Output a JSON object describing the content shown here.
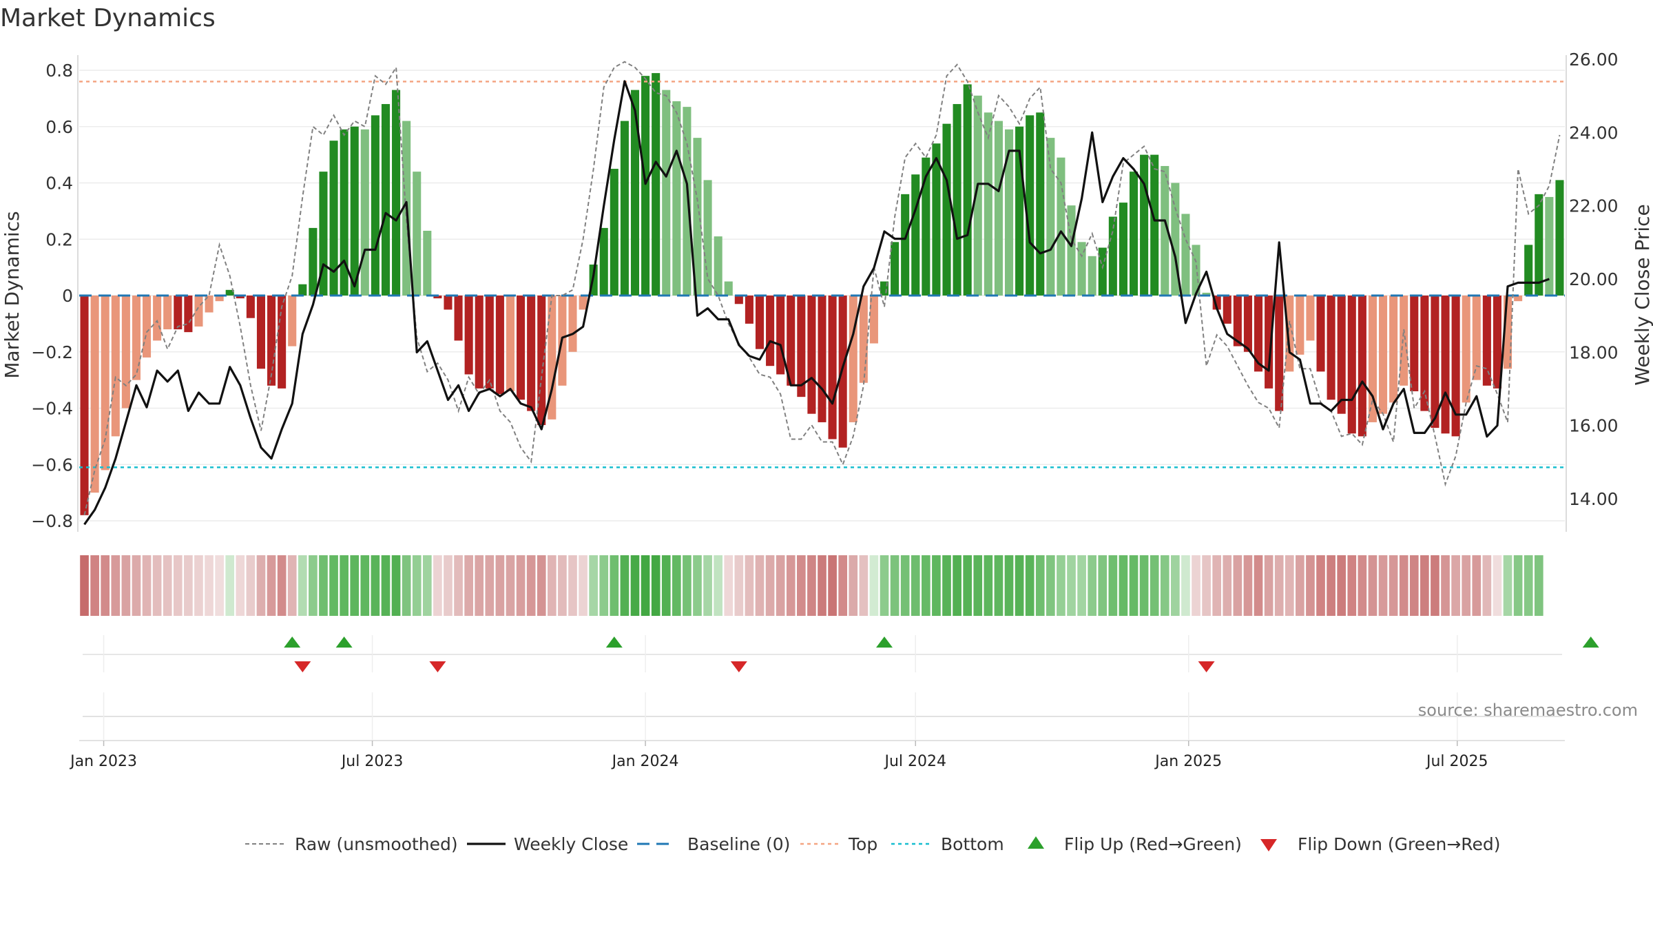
{
  "title": "Market Dynamics",
  "source": "source: sharemaestro.com",
  "colors": {
    "green_strong": "#228b22",
    "green_light": "#7fbf7f",
    "red_strong": "#b22222",
    "red_light": "#e9967a",
    "baseline": "#1f77b4",
    "top": "#f4a582",
    "bottom": "#17becf",
    "raw": "#808080",
    "close": "#111111",
    "flip_up": "#2ca02c",
    "flip_down": "#d62728"
  },
  "chart_data": {
    "type": "bar",
    "title": "Market Dynamics",
    "ylabel_left": "Market Dynamics",
    "ylabel_right": "Weekly Close Price",
    "ylim_left": [
      -0.8,
      0.8
    ],
    "ylim_right": [
      13.0,
      26.0
    ],
    "yticks_left": [
      "0.8",
      "0.6",
      "0.4",
      "0.2",
      "0",
      "−0.2",
      "−0.4",
      "−0.6",
      "−0.8"
    ],
    "yticks_right": [
      "26.00",
      "24.00",
      "22.00",
      "20.00",
      "18.00",
      "16.00",
      "14.00"
    ],
    "xticks": [
      "Jan 2023",
      "Jul 2023",
      "Jan 2024",
      "Jul 2024",
      "Jan 2025",
      "Jul 2025"
    ],
    "reference_lines": {
      "baseline": 0,
      "top": 0.76,
      "bottom": -0.61
    },
    "grid": true,
    "legend_position": "bottom",
    "start_date": "2022-12-19",
    "week_step_days": 7,
    "momentum": [
      -0.78,
      -0.7,
      -0.62,
      -0.5,
      -0.4,
      -0.3,
      -0.22,
      -0.16,
      -0.12,
      -0.12,
      -0.13,
      -0.11,
      -0.06,
      -0.02,
      0.02,
      -0.01,
      -0.08,
      -0.26,
      -0.32,
      -0.33,
      -0.18,
      0.04,
      0.24,
      0.44,
      0.55,
      0.59,
      0.6,
      0.59,
      0.64,
      0.68,
      0.73,
      0.62,
      0.44,
      0.23,
      -0.01,
      -0.05,
      -0.16,
      -0.28,
      -0.33,
      -0.33,
      -0.35,
      -0.34,
      -0.37,
      -0.41,
      -0.46,
      -0.44,
      -0.32,
      -0.2,
      -0.05,
      0.11,
      0.24,
      0.45,
      0.62,
      0.73,
      0.78,
      0.79,
      0.73,
      0.69,
      0.67,
      0.56,
      0.41,
      0.21,
      0.05,
      -0.03,
      -0.1,
      -0.19,
      -0.25,
      -0.28,
      -0.32,
      -0.36,
      -0.42,
      -0.45,
      -0.51,
      -0.54,
      -0.45,
      -0.31,
      -0.17,
      0.05,
      0.19,
      0.36,
      0.43,
      0.49,
      0.54,
      0.61,
      0.68,
      0.75,
      0.71,
      0.65,
      0.62,
      0.59,
      0.6,
      0.64,
      0.65,
      0.56,
      0.49,
      0.32,
      0.19,
      0.14,
      0.17,
      0.28,
      0.33,
      0.44,
      0.5,
      0.5,
      0.46,
      0.4,
      0.29,
      0.18,
      0.01,
      -0.05,
      -0.1,
      -0.18,
      -0.2,
      -0.27,
      -0.33,
      -0.41,
      -0.27,
      -0.21,
      -0.16,
      -0.27,
      -0.37,
      -0.42,
      -0.49,
      -0.5,
      -0.45,
      -0.42,
      -0.38,
      -0.32,
      -0.34,
      -0.41,
      -0.47,
      -0.49,
      -0.5,
      -0.38,
      -0.3,
      -0.32,
      -0.33,
      -0.26,
      -0.02,
      0.18,
      0.36,
      0.35,
      0.41
    ],
    "raw": [
      -0.78,
      -0.62,
      -0.51,
      -0.29,
      -0.32,
      -0.28,
      -0.13,
      -0.09,
      -0.19,
      -0.11,
      -0.1,
      -0.04,
      0.0,
      0.18,
      0.07,
      -0.11,
      -0.32,
      -0.48,
      -0.28,
      -0.04,
      0.07,
      0.35,
      0.6,
      0.57,
      0.64,
      0.57,
      0.62,
      0.6,
      0.78,
      0.75,
      0.81,
      0.27,
      -0.15,
      -0.27,
      -0.24,
      -0.3,
      -0.41,
      -0.29,
      -0.35,
      -0.3,
      -0.41,
      -0.45,
      -0.54,
      -0.59,
      -0.29,
      0.0,
      0.0,
      0.02,
      0.2,
      0.45,
      0.74,
      0.81,
      0.83,
      0.81,
      0.77,
      0.72,
      0.71,
      0.65,
      0.54,
      0.34,
      0.06,
      0.0,
      -0.1,
      -0.17,
      -0.22,
      -0.28,
      -0.29,
      -0.35,
      -0.51,
      -0.51,
      -0.46,
      -0.52,
      -0.52,
      -0.6,
      -0.5,
      -0.32,
      0.1,
      -0.04,
      0.28,
      0.49,
      0.54,
      0.49,
      0.57,
      0.78,
      0.82,
      0.76,
      0.65,
      0.56,
      0.71,
      0.67,
      0.61,
      0.7,
      0.74,
      0.45,
      0.4,
      0.2,
      0.14,
      0.22,
      0.1,
      0.23,
      0.47,
      0.5,
      0.53,
      0.45,
      0.44,
      0.31,
      0.2,
      0.12,
      -0.25,
      -0.14,
      -0.18,
      -0.25,
      -0.32,
      -0.38,
      -0.4,
      -0.47,
      -0.09,
      -0.26,
      -0.26,
      -0.38,
      -0.41,
      -0.5,
      -0.49,
      -0.53,
      -0.37,
      -0.42,
      -0.52,
      -0.12,
      -0.4,
      -0.34,
      -0.5,
      -0.67,
      -0.57,
      -0.38,
      -0.25,
      -0.26,
      -0.35,
      -0.45,
      0.45,
      0.29,
      0.32,
      0.39,
      0.57
    ],
    "close": [
      13.3,
      13.7,
      14.3,
      15.1,
      16.1,
      17.1,
      16.5,
      17.5,
      17.2,
      17.5,
      16.4,
      16.9,
      16.6,
      16.6,
      17.6,
      17.1,
      16.2,
      15.4,
      15.1,
      15.9,
      16.6,
      18.5,
      19.3,
      20.4,
      20.2,
      20.5,
      19.8,
      20.8,
      20.8,
      21.8,
      21.6,
      22.1,
      18.0,
      18.3,
      17.5,
      16.7,
      17.1,
      16.4,
      16.9,
      17.0,
      16.8,
      17.0,
      16.6,
      16.5,
      15.9,
      17.0,
      18.4,
      18.5,
      18.7,
      20.1,
      22.0,
      23.8,
      25.4,
      24.6,
      22.6,
      23.2,
      22.8,
      23.5,
      22.6,
      19.0,
      19.2,
      18.9,
      18.9,
      18.2,
      17.9,
      17.8,
      18.3,
      18.2,
      17.1,
      17.1,
      17.3,
      17.0,
      16.6,
      17.6,
      18.5,
      19.8,
      20.3,
      21.3,
      21.1,
      21.1,
      21.9,
      22.8,
      23.3,
      22.7,
      21.1,
      21.2,
      22.6,
      22.6,
      22.4,
      23.5,
      23.5,
      21.0,
      20.7,
      20.8,
      21.3,
      20.9,
      22.2,
      24.0,
      22.1,
      22.8,
      23.3,
      23.0,
      22.6,
      21.6,
      21.6,
      20.6,
      18.8,
      19.6,
      20.2,
      19.2,
      18.5,
      18.3,
      18.1,
      17.7,
      17.5,
      21.0,
      18.0,
      17.8,
      16.6,
      16.6,
      16.4,
      16.7,
      16.7,
      17.2,
      16.8,
      15.9,
      16.6,
      17.0,
      15.8,
      15.8,
      16.2,
      16.9,
      16.3,
      16.3,
      16.8,
      15.7,
      16.0,
      19.8,
      19.9,
      19.9,
      19.9,
      20.0
    ]
  },
  "regime_strip": [
    "#c66b6b",
    "#d08383",
    "#d28b8b",
    "#d79a9a",
    "#d9a2a2",
    "#dcaaaa",
    "#e0b4b4",
    "#e3bdbd",
    "#e5c2c2",
    "#e7c7c7",
    "#e8cbcb",
    "#ebd1d1",
    "#eed7d7",
    "#f0dddd",
    "#cfe9cf",
    "#eed7d7",
    "#e8cbcb",
    "#ddaeae",
    "#d79a9a",
    "#d28b8b",
    "#e0b4b4",
    "#b2dcb2",
    "#8ccb8c",
    "#6fbe6f",
    "#63b963",
    "#5fb75f",
    "#5eb65e",
    "#5fb75f",
    "#5ab45a",
    "#56b256",
    "#52b052",
    "#7fc47f",
    "#93ce93",
    "#9fd39f",
    "#ecd3d3",
    "#e8cbcb",
    "#e2bbbb",
    "#dcaaaa",
    "#daa5a5",
    "#daa5a5",
    "#d9a2a2",
    "#d9a4a4",
    "#d89e9e",
    "#d69797",
    "#d49393",
    "#e0b4b4",
    "#e2bbbb",
    "#e6c5c5",
    "#ecd3d3",
    "#a6d6a6",
    "#8ccb8c",
    "#6fbe6f",
    "#53b053",
    "#47aa47",
    "#43a843",
    "#43a843",
    "#52b052",
    "#63b963",
    "#76c176",
    "#8ccb8c",
    "#a6d6a6",
    "#c1e3c1",
    "#eed7d7",
    "#e8cbcb",
    "#e3bdbd",
    "#dfb2b2",
    "#dcaaaa",
    "#d9a2a2",
    "#d69797",
    "#d28b8b",
    "#cf8585",
    "#cb7b7b",
    "#c97575",
    "#d28b8b",
    "#dbaaaa",
    "#e4c0c0",
    "#d2ebd2",
    "#8ccb8c",
    "#7cc37c",
    "#74c074",
    "#6ebd6e",
    "#66ba66",
    "#5fb75f",
    "#58b358",
    "#52b052",
    "#56b256",
    "#5ab45a",
    "#5db65d",
    "#5eb65e",
    "#5ab45a",
    "#56b256",
    "#5ab45a",
    "#6fbe6f",
    "#80c580",
    "#95cf95",
    "#a0d4a0",
    "#a2d5a2",
    "#8ccb8c",
    "#80c580",
    "#6fbe6f",
    "#66ba66",
    "#66ba66",
    "#6bbc6b",
    "#74c074",
    "#86c886",
    "#9fd39f",
    "#cfe9cf",
    "#ecd3d3",
    "#e6c5c5",
    "#e0b4b4",
    "#ddaeae",
    "#d9a2a2",
    "#d69797",
    "#d28b8b",
    "#d9a2a2",
    "#ddaeae",
    "#e0b4b4",
    "#d9a2a2",
    "#d49393",
    "#d08383",
    "#cd7f7f",
    "#cc7c7c",
    "#d08383",
    "#d28b8b",
    "#d49393",
    "#d79a9a",
    "#d69797",
    "#d28b8b",
    "#cf8585",
    "#cd7f7f",
    "#cc7c7c",
    "#d59595",
    "#dba7a7",
    "#d9a2a2",
    "#d79a9a",
    "#e1b8b8",
    "#f0dddd",
    "#a6d6a6",
    "#86c886",
    "#86c886",
    "#7fc47f"
  ],
  "flips": {
    "up": [
      "2023-05-08",
      "2023-06-12",
      "2023-12-11",
      "2024-06-10",
      "2025-09-29"
    ],
    "down": [
      "2023-05-15",
      "2023-08-14",
      "2024-03-04",
      "2025-01-13"
    ]
  },
  "legend": {
    "raw": "Raw (unsmoothed)",
    "close": "Weekly Close",
    "baseline": "Baseline (0)",
    "top": "Top",
    "bottom": "Bottom",
    "flip_up": "Flip Up (Red→Green)",
    "flip_down": "Flip Down (Green→Red)"
  }
}
